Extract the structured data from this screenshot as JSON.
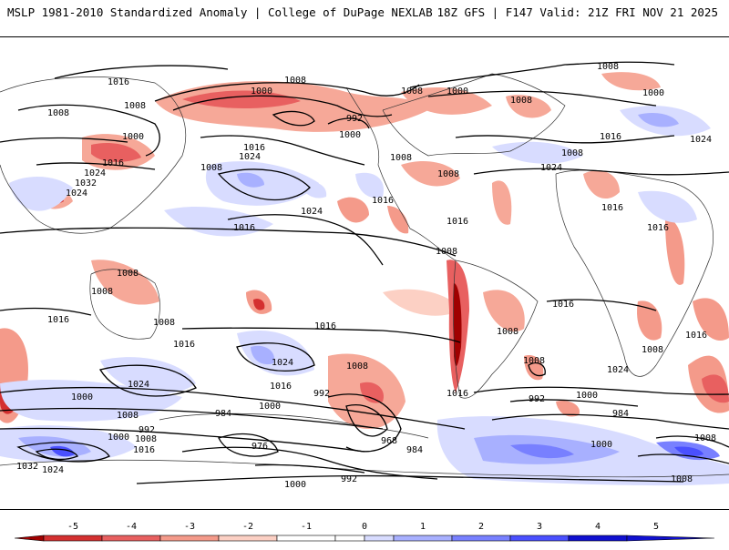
{
  "header": {
    "title": "MSLP 1981-2010 Standardized Anomaly | College of DuPage NEXLAB",
    "run_info": "18Z GFS | F147 Valid: 21Z FRI NOV 21 2025"
  },
  "map": {
    "isobar_labels": [
      {
        "id": "1016",
        "text": "1016"
      },
      {
        "id": "1008",
        "text": "1008"
      },
      {
        "id": "1000",
        "text": "1000"
      },
      {
        "id": "992",
        "text": "992"
      },
      {
        "id": "1024",
        "text": "1024"
      },
      {
        "id": "1032",
        "text": "1032"
      },
      {
        "id": "984",
        "text": "984"
      },
      {
        "id": "976",
        "text": "976"
      },
      {
        "id": "968",
        "text": "968"
      }
    ]
  },
  "colorbar": {
    "ticks": [
      "-5",
      "-4",
      "-3",
      "-2",
      "-1",
      "0",
      "1",
      "2",
      "3",
      "4",
      "5"
    ],
    "colors": [
      "#a00000",
      "#d43030",
      "#e86060",
      "#f49a8a",
      "#fcd0c4",
      "#ffffff",
      "#ffffff",
      "#d8dcff",
      "#a8b0ff",
      "#7880ff",
      "#4a50ff",
      "#1010d0"
    ]
  }
}
